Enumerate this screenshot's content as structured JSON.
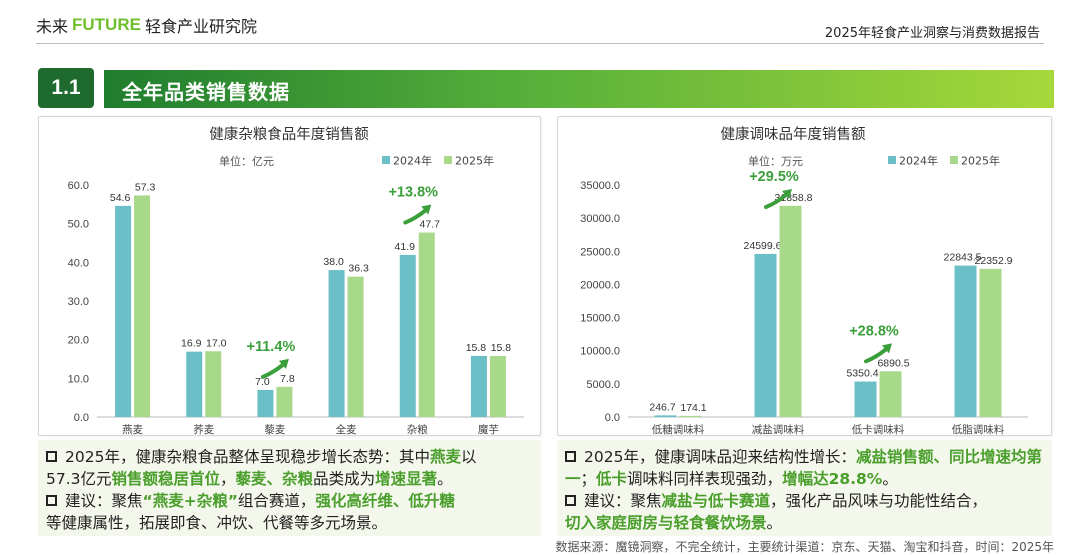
{
  "header": {
    "logo_cn": "未来",
    "logo_en": "FUTURE",
    "logo_org": "轻食产业研究院",
    "report_title": "2025年轻食产业洞察与消费数据报告"
  },
  "section": {
    "number": "1.1",
    "title": "全年品类销售数据"
  },
  "chart_data": [
    {
      "type": "bar",
      "title": "健康杂粮食品年度销售额",
      "unit": "单位：亿元",
      "categories": [
        "燕麦",
        "荞麦",
        "藜麦",
        "全麦",
        "杂粮",
        "魔芋"
      ],
      "series": [
        {
          "name": "2024年",
          "values": [
            54.6,
            16.9,
            7.0,
            38.0,
            41.9,
            15.8
          ],
          "labels": [
            "54.6",
            "16.9",
            "7.0",
            "38.0",
            "41.9",
            "15.8"
          ]
        },
        {
          "name": "2025年",
          "values": [
            57.3,
            17.0,
            7.8,
            36.3,
            47.7,
            15.8
          ],
          "labels": [
            "57.3",
            "17.0",
            "7.8",
            "36.3",
            "47.7",
            "15.8"
          ]
        }
      ],
      "ylim": [
        0,
        60
      ],
      "yticks": [
        "0.0",
        "10.0",
        "20.0",
        "30.0",
        "40.0",
        "50.0",
        "60.0"
      ],
      "ytick_values": [
        0,
        10,
        20,
        30,
        40,
        50,
        60
      ],
      "annotations": [
        {
          "text": "+13.8%",
          "category": "杂粮"
        },
        {
          "text": "+11.4%",
          "category": "藜麦"
        }
      ],
      "colors": {
        "2024年": "#6bbfc6",
        "2025年": "#a8d88a",
        "annotation": "#3a9e3a"
      }
    },
    {
      "type": "bar",
      "title": "健康调味品年度销售额",
      "unit": "单位：万元",
      "categories": [
        "低糖调味料",
        "减盐调味料",
        "低卡调味料",
        "低脂调味料"
      ],
      "series": [
        {
          "name": "2024年",
          "values": [
            246.7,
            24599.6,
            5350.4,
            22843.5
          ],
          "labels": [
            "246.7",
            "24599.6",
            "5350.4",
            "22843.5"
          ]
        },
        {
          "name": "2025年",
          "values": [
            174.1,
            31858.8,
            6890.5,
            22352.9
          ],
          "labels": [
            "174.1",
            "31858.8",
            "6890.5",
            "22352.9"
          ]
        }
      ],
      "ylim": [
        0,
        35000
      ],
      "yticks": [
        "0.0",
        "5000.0",
        "10000.0",
        "15000.0",
        "20000.0",
        "25000.0",
        "30000.0",
        "35000.0"
      ],
      "ytick_values": [
        0,
        5000,
        10000,
        15000,
        20000,
        25000,
        30000,
        35000
      ],
      "annotations": [
        {
          "text": "+29.5%",
          "category": "减盐调味料"
        },
        {
          "text": "+28.8%",
          "category": "低卡调味料"
        }
      ],
      "colors": {
        "2024年": "#6bbfc6",
        "2025年": "#a8d88a",
        "annotation": "#3a9e3a"
      }
    }
  ],
  "notes": {
    "left": {
      "p1_a": "2025年，健康杂粮食品整体呈现稳步增长态势：其中",
      "p1_h1": "燕麦",
      "p1_b": "以",
      "p1_c": "57.3亿元",
      "p1_h2": "销售额稳居首位",
      "p1_d": "，",
      "p1_h3": "藜麦、杂粮",
      "p1_e": "品类成为",
      "p1_h4": "增速显著",
      "p1_f": "。",
      "p2_a": "建议：聚焦",
      "p2_h1": "“燕麦+杂粮”",
      "p2_b": "组合赛道，",
      "p2_h2": "强化高纤维、低升糖",
      "p2_c": "等健康属性，拓展即食、冲饮、代餐等多元场景。"
    },
    "right": {
      "p1_a": "2025年，健康调味品迎来结构性增长：",
      "p1_h1": "减盐销售额、同比增速均第一",
      "p1_b": "；",
      "p1_h2": "低卡",
      "p1_c": "调味料同样表现强劲，",
      "p1_h3": "增幅达28.8%",
      "p1_d": "。",
      "p2_a": "建议：聚焦",
      "p2_h1": "减盐与低卡赛道",
      "p2_b": "，强化产品风味与功能性结合，",
      "p2_h2": "切入家庭厨房与轻食餐饮场景",
      "p2_c": "。"
    }
  },
  "source": "数据来源：魔镜洞察，不完全统计，主要统计渠道：京东、天猫、淘宝和抖音，时间：2025年"
}
